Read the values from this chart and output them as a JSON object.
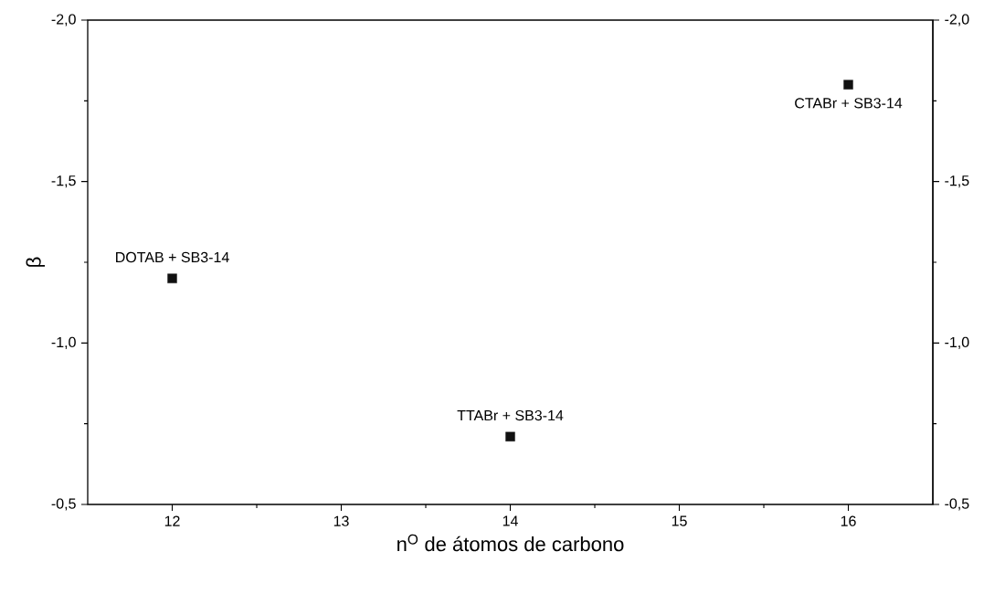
{
  "chart_data": {
    "type": "scatter",
    "xlabel": "n$^{O}$ de átomos de carbono",
    "ylabel": "β",
    "x": [
      12,
      14,
      16
    ],
    "series": [
      {
        "color": "#111111",
        "values": [
          -1.2,
          -0.71,
          -1.8
        ]
      }
    ],
    "marker": "square",
    "xlim": [
      11.5,
      16.5
    ],
    "xticks": [
      12,
      13,
      14,
      15,
      16
    ],
    "ylim": [
      -0.5,
      -2.0
    ],
    "yticks": [
      {
        "value": -2.0,
        "label": "-2,0"
      },
      {
        "value": -1.5,
        "label": "-1,5"
      },
      {
        "value": -1.0,
        "label": "-1,0"
      },
      {
        "value": -0.5,
        "label": "-0,5"
      }
    ],
    "y2lim": [
      -0.5,
      -2.0
    ],
    "y2ticks": [
      {
        "value": -2.0,
        "label": "-2,0"
      },
      {
        "value": -1.5,
        "label": "-1,5"
      },
      {
        "value": -1.0,
        "label": "-1,0"
      },
      {
        "value": -0.5,
        "label": "-0,5"
      }
    ],
    "grid": false,
    "annotations": [
      {
        "text": "DOTAB + SB3-14",
        "x": 12,
        "y": -1.2
      },
      {
        "text": "TTABr + SB3-14",
        "x": 14,
        "y": -0.71
      },
      {
        "text": "CTABr + SB3-14",
        "x": 16,
        "y": -1.8
      }
    ]
  }
}
